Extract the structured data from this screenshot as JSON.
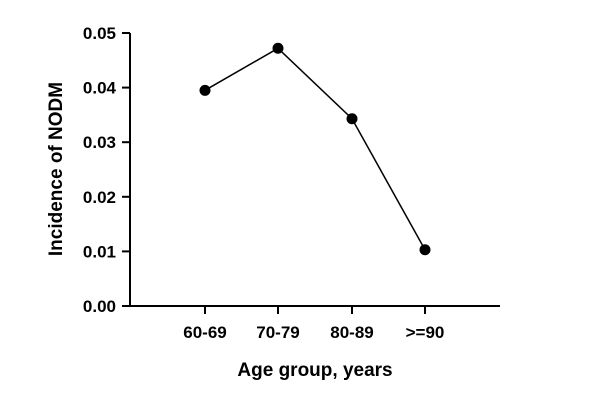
{
  "chart_data": {
    "type": "line",
    "title": "",
    "xlabel": "Age group, years",
    "ylabel": "Incidence of NODM",
    "categories": [
      "60-69",
      "70-79",
      "80-89",
      ">=90"
    ],
    "series": [
      {
        "values": [
          0.0395,
          0.0472,
          0.0343,
          0.0103
        ]
      }
    ],
    "ylim": [
      0,
      0.05
    ],
    "yticks": [
      "0.00",
      "0.01",
      "0.02",
      "0.03",
      "0.04",
      "0.05"
    ],
    "grid": false,
    "legend": "none",
    "colors": {
      "line": "#000000",
      "marker": "#000000"
    }
  }
}
